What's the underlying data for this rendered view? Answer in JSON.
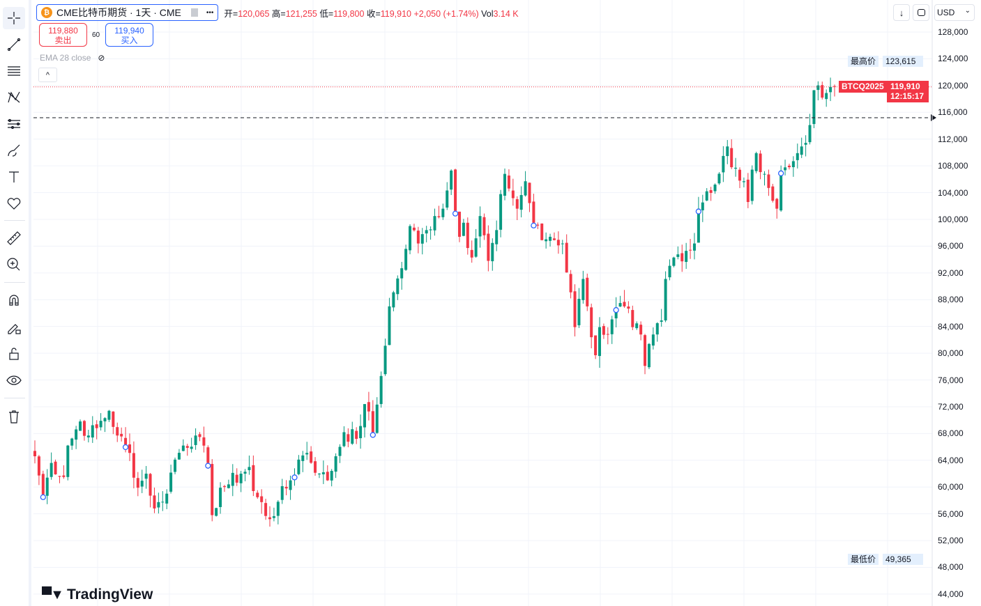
{
  "legend": {
    "symbol": "CME比特币期货 · 1天 · CME",
    "icon": "bitcoin-icon",
    "more": "•••",
    "open_label": "开=",
    "open": "120,065",
    "high_label": "高=",
    "high": "121,255",
    "low_label": "低=",
    "low": "119,800",
    "close_label": "收=",
    "close": "119,910",
    "change": "+2,050 (+1.74%)",
    "vol_label": "Vol",
    "vol": "3.14 K"
  },
  "trade": {
    "sell_price": "119,880",
    "sell_label": "卖出",
    "spread": "60",
    "buy_price": "119,940",
    "buy_label": "买入"
  },
  "indicator": {
    "label": "EMA 28 close"
  },
  "collapse": "^",
  "top_right": {
    "download": "↓",
    "currency": "USD"
  },
  "price_axis": {
    "ticks": [
      "128,000",
      "124,000",
      "120,000",
      "116,000",
      "112,000",
      "108,000",
      "104,000",
      "100,000",
      "96,000",
      "92,000",
      "88,000",
      "84,000",
      "80,000",
      "76,000",
      "72,000",
      "68,000",
      "64,000",
      "60,000",
      "56,000",
      "52,000",
      "48,000",
      "44,000"
    ],
    "high_label": "最高价",
    "high_value": "123,615",
    "low_label": "最低价",
    "low_value": "49,365",
    "symbol_tag": "BTCQ2025",
    "last_price": "119,910",
    "countdown": "12:15:17"
  },
  "logo": "TradingView",
  "colors": {
    "up": "#089981",
    "down": "#F23645",
    "accent": "#2962FF"
  },
  "chart_data": {
    "type": "candlestick",
    "title": "CME比特币期货 · 1天 · CME",
    "candle_count": 195,
    "ylim": [
      43000,
      130000
    ],
    "ytick_step": 4000,
    "last_close": 119910,
    "alert_level": 115200,
    "close_anchors": [
      [
        0,
        64600
      ],
      [
        2,
        58900
      ],
      [
        4,
        63600
      ],
      [
        7,
        61500
      ],
      [
        8,
        66200
      ],
      [
        11,
        69800
      ],
      [
        13,
        67700
      ],
      [
        15,
        68800
      ],
      [
        18,
        71400
      ],
      [
        20,
        67700
      ],
      [
        23,
        65100
      ],
      [
        25,
        59900
      ],
      [
        27,
        62000
      ],
      [
        29,
        56800
      ],
      [
        31,
        57800
      ],
      [
        34,
        64100
      ],
      [
        36,
        66200
      ],
      [
        39,
        67700
      ],
      [
        42,
        63600
      ],
      [
        43,
        55800
      ],
      [
        45,
        59900
      ],
      [
        47,
        60400
      ],
      [
        50,
        62000
      ],
      [
        52,
        63000
      ],
      [
        53,
        59400
      ],
      [
        57,
        55200
      ],
      [
        59,
        57800
      ],
      [
        62,
        61000
      ],
      [
        64,
        64100
      ],
      [
        66,
        65100
      ],
      [
        69,
        62000
      ],
      [
        71,
        61000
      ],
      [
        73,
        64600
      ],
      [
        75,
        68200
      ],
      [
        78,
        67200
      ],
      [
        80,
        72400
      ],
      [
        82,
        68200
      ],
      [
        84,
        76600
      ],
      [
        86,
        87000
      ],
      [
        87,
        89100
      ],
      [
        89,
        92700
      ],
      [
        91,
        99000
      ],
      [
        93,
        96400
      ],
      [
        95,
        98400
      ],
      [
        97,
        100500
      ],
      [
        99,
        101600
      ],
      [
        101,
        107300
      ],
      [
        103,
        97400
      ],
      [
        104,
        99500
      ],
      [
        106,
        94300
      ],
      [
        108,
        100500
      ],
      [
        110,
        93800
      ],
      [
        112,
        98400
      ],
      [
        114,
        106800
      ],
      [
        117,
        101600
      ],
      [
        119,
        105700
      ],
      [
        121,
        99500
      ],
      [
        123,
        96900
      ],
      [
        125,
        97400
      ],
      [
        128,
        96400
      ],
      [
        130,
        89100
      ],
      [
        131,
        83900
      ],
      [
        133,
        91100
      ],
      [
        134,
        87000
      ],
      [
        136,
        79700
      ],
      [
        137,
        83900
      ],
      [
        139,
        82800
      ],
      [
        142,
        87500
      ],
      [
        143,
        87000
      ],
      [
        145,
        83900
      ],
      [
        147,
        82800
      ],
      [
        148,
        78100
      ],
      [
        150,
        82800
      ],
      [
        152,
        84900
      ],
      [
        153,
        91100
      ],
      [
        155,
        94300
      ],
      [
        158,
        95300
      ],
      [
        160,
        96400
      ],
      [
        161,
        101600
      ],
      [
        163,
        104200
      ],
      [
        165,
        105200
      ],
      [
        168,
        110900
      ],
      [
        169,
        107800
      ],
      [
        172,
        105700
      ],
      [
        173,
        102600
      ],
      [
        175,
        109900
      ],
      [
        177,
        106800
      ],
      [
        178,
        104700
      ],
      [
        180,
        101600
      ],
      [
        181,
        107300
      ],
      [
        183,
        107800
      ],
      [
        185,
        109900
      ],
      [
        186,
        110900
      ],
      [
        188,
        114100
      ],
      [
        189,
        119300
      ],
      [
        191,
        118200
      ],
      [
        193,
        119800
      ],
      [
        194,
        119910
      ]
    ],
    "event_markers": [
      2,
      22,
      42,
      63,
      82,
      102,
      121,
      141,
      161,
      181
    ]
  }
}
